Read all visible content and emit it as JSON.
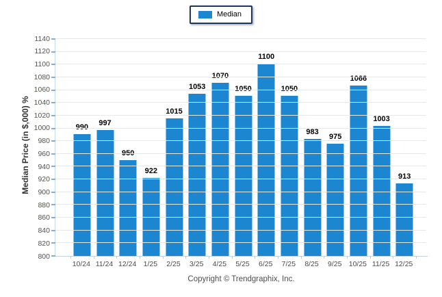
{
  "legend": {
    "items": [
      {
        "label": "Median",
        "color": "#1C87D0"
      }
    ]
  },
  "y_axis_title": "Median Price (in $,000) %",
  "footer": {
    "copyright": "Copyright © Trendgraphix, Inc."
  },
  "colors": {
    "bar": "#1C87D0",
    "legend_border": "#17375D",
    "gridline": "#E8E8E8",
    "axis": "#C9D9EA",
    "y_tick": "#7FB0DC"
  },
  "chart_data": {
    "type": "bar",
    "title": "",
    "categories": [
      "10/24",
      "11/24",
      "12/24",
      "1/25",
      "2/25",
      "3/25",
      "4/25",
      "5/25",
      "6/25",
      "7/25",
      "8/25",
      "9/25",
      "10/25",
      "11/25",
      "12/25"
    ],
    "series": [
      {
        "name": "Median",
        "values": [
          990,
          997,
          950,
          922,
          1015,
          1053,
          1070,
          1050,
          1100,
          1050,
          983,
          975,
          1066,
          1003,
          913
        ]
      }
    ],
    "xlabel": "",
    "ylabel": "Median Price (in $,000) %",
    "ylim": [
      800,
      1140
    ],
    "ytick_step": 20,
    "grid": true,
    "bar_labels": true,
    "legend_position": "top-center",
    "footnote": "Copyright © Trendgraphix, Inc."
  }
}
